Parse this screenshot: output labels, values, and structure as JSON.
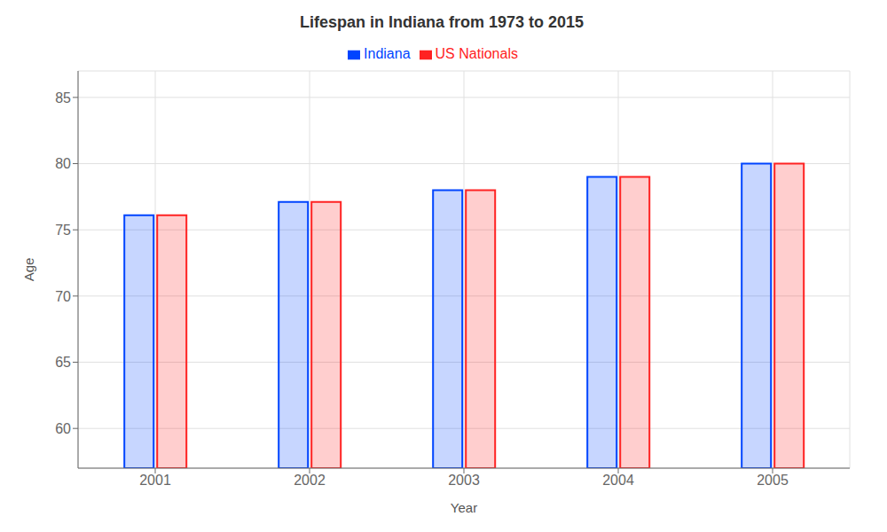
{
  "chart_data": {
    "type": "bar",
    "title": "Lifespan in Indiana from 1973 to 2015",
    "x_label": "Year",
    "y_label": "Age",
    "categories": [
      "2001",
      "2002",
      "2003",
      "2004",
      "2005"
    ],
    "series": [
      {
        "name": "Indiana",
        "color": "#0044ff",
        "values": [
          76.1,
          77.1,
          78.0,
          79.0,
          80.0
        ]
      },
      {
        "name": "US Nationals",
        "color": "#ff2222",
        "values": [
          76.1,
          77.1,
          78.0,
          79.0,
          80.0
        ]
      }
    ],
    "ylim": [
      57,
      87
    ],
    "yticks": [
      60,
      65,
      70,
      75,
      80,
      85
    ],
    "grid": true,
    "legend": "top"
  }
}
